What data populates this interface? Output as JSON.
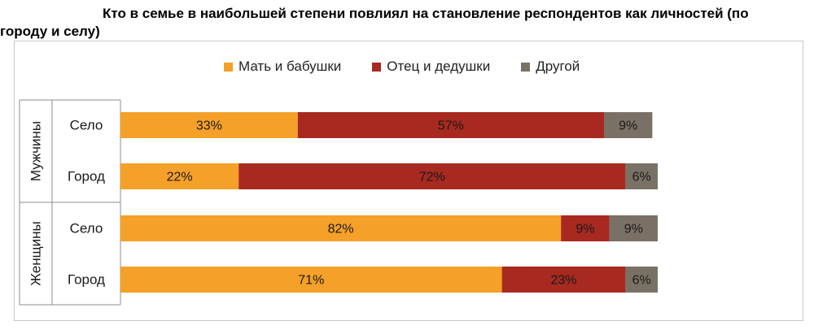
{
  "title_line1": "Кто в семье в наибольшей степени повлиял на становление респондентов как  личностей (по",
  "title_line2": "городу и селу)",
  "chart_data": {
    "type": "bar",
    "orientation": "horizontal",
    "stacked": "percent",
    "legend_position": "top",
    "colors": {
      "Мать и бабушки": "#F5A029",
      "Отец и дедушки": "#A72920",
      "Другой": "#7A7166"
    },
    "series": [
      {
        "name": "Мать и бабушки",
        "values": [
          33,
          22,
          82,
          71
        ],
        "labels": [
          "33%",
          "22%",
          "82%",
          "71%"
        ]
      },
      {
        "name": "Отец и дедушки",
        "values": [
          57,
          72,
          9,
          23
        ],
        "labels": [
          "57%",
          "72%",
          "9%",
          "23%"
        ]
      },
      {
        "name": "Другой",
        "values": [
          9,
          6,
          9,
          6
        ],
        "labels": [
          "9%",
          "6%",
          "9%",
          "6%"
        ]
      }
    ],
    "groups": [
      {
        "name": "Мужчины",
        "categories": [
          "Село",
          "Город"
        ]
      },
      {
        "name": "Женщины",
        "categories": [
          "Село",
          "Город"
        ]
      }
    ],
    "categories": [
      "Село",
      "Город",
      "Село",
      "Город"
    ]
  }
}
